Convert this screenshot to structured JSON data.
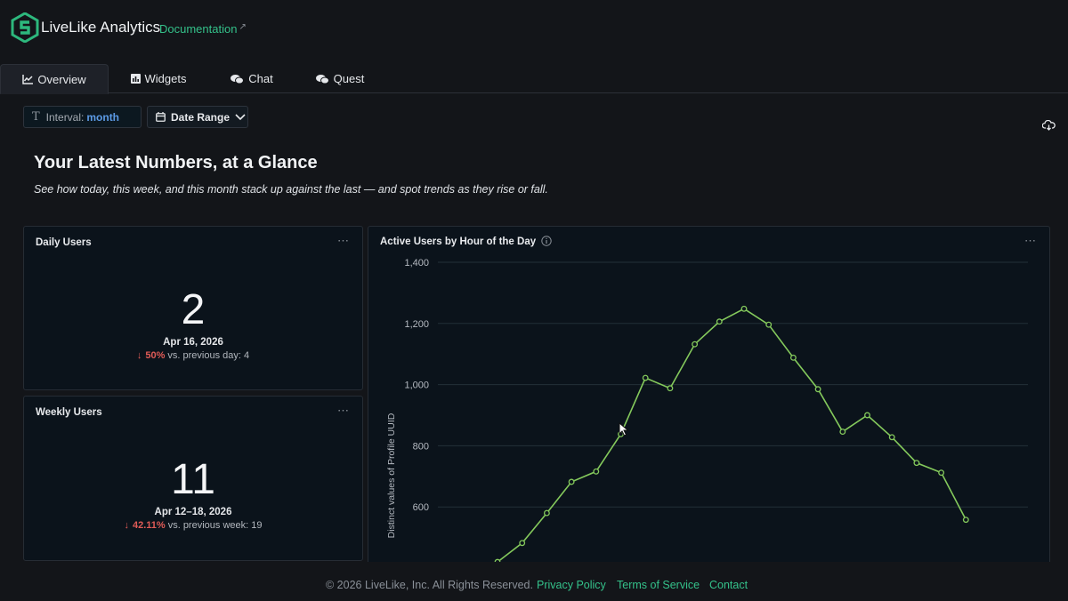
{
  "header": {
    "brand": "LiveLike Analytics",
    "doc_link": "Documentation",
    "doc_link_icon": "external-link-icon",
    "logo_color": "#2db87d"
  },
  "tabs": [
    {
      "label": "Overview",
      "icon": "line-chart-icon",
      "active": true
    },
    {
      "label": "Widgets",
      "icon": "bar-chart-icon",
      "active": false
    },
    {
      "label": "Chat",
      "icon": "chat-bubbles-icon",
      "active": false
    },
    {
      "label": "Quest",
      "icon": "chat-bubbles-icon",
      "active": false
    }
  ],
  "filters": {
    "interval_label": "Interval:",
    "interval_value": "month",
    "date_range_label": "Date Range"
  },
  "hero": {
    "title": "Your Latest Numbers, at a Glance",
    "subtitle": "See how today, this week, and this month stack up against the last — and spot trends as they rise or fall."
  },
  "daily": {
    "title": "Daily Users",
    "value": "2",
    "date": "Apr 16, 2026",
    "change": "50%",
    "compare": "vs. previous day: 4"
  },
  "weekly": {
    "title": "Weekly Users",
    "value": "11",
    "date": "Apr 12–18, 2026",
    "change": "42.11%",
    "compare": "vs. previous week: 19"
  },
  "chart_data": {
    "type": "line",
    "title": "Active Users by Hour of the Day",
    "ylabel": "Distinct values of Profile UUID",
    "xlabel": "",
    "ylim": [
      350,
      1400
    ],
    "yticks": [
      "600",
      "800",
      "1,000",
      "1,200",
      "1,400"
    ],
    "grid": true,
    "color": "#84c95c",
    "x": [
      3,
      4,
      5,
      6,
      7,
      8,
      9,
      10,
      11,
      12,
      13,
      14,
      15,
      16,
      17,
      18,
      19,
      20,
      21,
      22
    ],
    "values": [
      420,
      482,
      580,
      682,
      716,
      838,
      1022,
      988,
      1132,
      1206,
      1248,
      1196,
      1088,
      985,
      846,
      900,
      828,
      744,
      712,
      558
    ]
  },
  "footer": {
    "copyright": "© 2026 LiveLike, Inc. All Rights Reserved.",
    "links": [
      "Privacy Policy",
      "Terms of Service",
      "Contact"
    ]
  }
}
